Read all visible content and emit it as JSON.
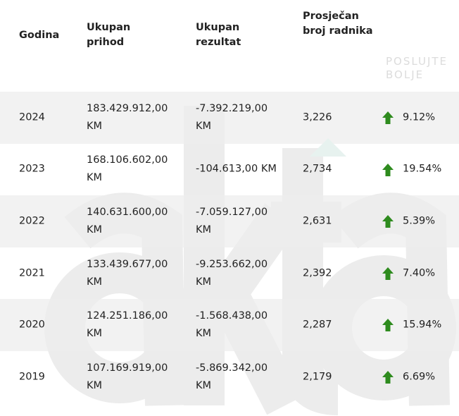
{
  "watermark": {
    "logo": "akta",
    "slogan_line1": "POSLUJTE",
    "slogan_line2": "BOLJE"
  },
  "headers": {
    "year": "Godina",
    "revenue": "Ukupan prihod",
    "result": "Ukupan rezultat",
    "employees": "Prosječan broj radnika"
  },
  "colors": {
    "up_arrow": "#2e8b1e",
    "row_alt": "#eeeeee"
  },
  "rows": [
    {
      "year": "2024",
      "revenue": "183.429.912,00 KM",
      "result": "-7.392.219,00 KM",
      "employees": "3,226",
      "trend": "up",
      "change": "9.12%"
    },
    {
      "year": "2023",
      "revenue": "168.106.602,00 KM",
      "result": "-104.613,00 KM",
      "employees": "2,734",
      "trend": "up",
      "change": "19.54%"
    },
    {
      "year": "2022",
      "revenue": "140.631.600,00 KM",
      "result": "-7.059.127,00 KM",
      "employees": "2,631",
      "trend": "up",
      "change": "5.39%"
    },
    {
      "year": "2021",
      "revenue": "133.439.677,00 KM",
      "result": "-9.253.662,00 KM",
      "employees": "2,392",
      "trend": "up",
      "change": "7.40%"
    },
    {
      "year": "2020",
      "revenue": "124.251.186,00 KM",
      "result": "-1.568.438,00 KM",
      "employees": "2,287",
      "trend": "up",
      "change": "15.94%"
    },
    {
      "year": "2019",
      "revenue": "107.169.919,00 KM",
      "result": "-5.869.342,00 KM",
      "employees": "2,179",
      "trend": "up",
      "change": "6.69%"
    }
  ]
}
